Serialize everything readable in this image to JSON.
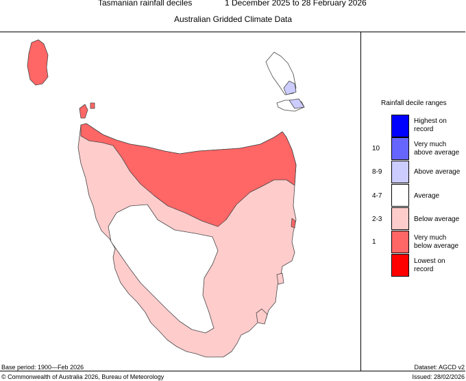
{
  "header": {
    "title": "Tasmanian rainfall deciles",
    "period": "1 December 2025 to 28 February 2026",
    "subtitle": "Australian Gridded Climate Data"
  },
  "legend": {
    "title": "Rainfall decile ranges",
    "items": [
      {
        "code": "",
        "label_line1": "Highest on",
        "label_line2": "record",
        "color": "#0000ff"
      },
      {
        "code": "10",
        "label_line1": "Very much",
        "label_line2": "above average",
        "color": "#6666ff"
      },
      {
        "code": "8-9",
        "label_line1": "Above average",
        "label_line2": "",
        "color": "#ccccff"
      },
      {
        "code": "4-7",
        "label_line1": "Average",
        "label_line2": "",
        "color": "#ffffff"
      },
      {
        "code": "2-3",
        "label_line1": "Below average",
        "label_line2": "",
        "color": "#ffcccc"
      },
      {
        "code": "1",
        "label_line1": "Very much",
        "label_line2": "below average",
        "color": "#ff6666"
      },
      {
        "code": "",
        "label_line1": "Lowest on",
        "label_line2": "record",
        "color": "#ff0000"
      }
    ]
  },
  "footer": {
    "base_period": "Base period: 1900—Feb 2026",
    "dataset": "Dataset: AGCD v2",
    "copyright": "© Commonwealth of Australia 2026, Bureau of Meteorology",
    "issued": "Issued: 28/02/2026"
  }
}
